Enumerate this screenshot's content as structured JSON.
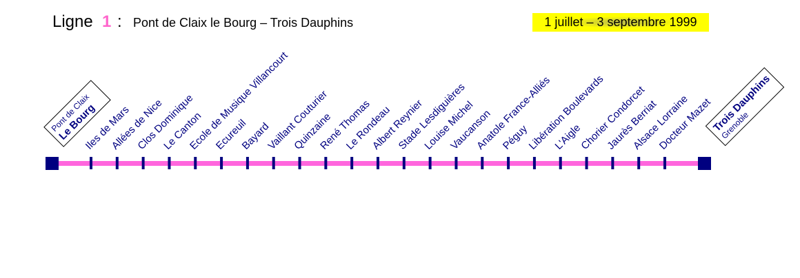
{
  "header": {
    "line_label": "Ligne",
    "line_number": "1",
    "separator": ":",
    "route": "Pont de Claix le Bourg – Trois Dauphins",
    "date": "1 juillet – 3 septembre 1999"
  },
  "terminals": {
    "start": {
      "top": "Pont de Claix",
      "name": "Le Bourg"
    },
    "end": {
      "name": "Trois Dauphins",
      "bottom": "Grenoble"
    }
  },
  "stops": [
    "Iles de Mars",
    "Allées de Nice",
    "Clos Dominique",
    "Le Canton",
    "Ecole de Musique Villancourt",
    "Ecureuil",
    "Bayard",
    "Vaillant Couturier",
    "Quinzaine",
    "René Thomas",
    "Le Rondeau",
    "Albert Reynier",
    "Stade Lesdiguières",
    "Louise Michel",
    "Vaucanson",
    "Anatole France-Alliés",
    "Péguy",
    "Libération Boulevards",
    "L'Aigle",
    "Chorier Condorcet",
    "Jaurès Berriat",
    "Alsace Lorraine",
    "Docteur Mazet"
  ]
}
